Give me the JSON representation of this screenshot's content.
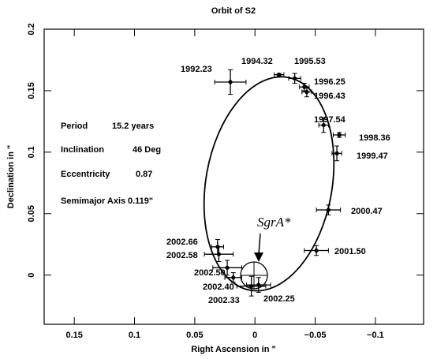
{
  "chart_data": {
    "type": "scatter",
    "title": "Orbit of S2",
    "x_label": "Right Ascension in \"",
    "y_label": "Declination in \"",
    "xlim": [
      0.175,
      -0.14
    ],
    "ylim": [
      -0.04,
      0.2
    ],
    "xticks": [
      0.15,
      0.1,
      0.05,
      0,
      {
        "value": -0.05,
        "label": "−0.05"
      },
      {
        "value": -0.1,
        "label": "−0.1"
      }
    ],
    "yticks": [
      0,
      0.05,
      0.1,
      0.15,
      0.2
    ],
    "series": [
      {
        "color": "#000000",
        "point_labels": [
          "1992.23",
          "1994.32",
          "1995.53",
          "1996.25",
          "1996.43",
          "1997.54",
          "1998.36",
          "1999.47",
          "2000.47",
          "2001.50",
          "2002.25",
          "2002.33",
          "2002.40",
          "2002.50",
          "2002.58",
          "2002.66"
        ],
        "x": [
          0.0204,
          -0.02,
          -0.033,
          -0.041,
          -0.043,
          -0.057,
          -0.07,
          -0.068,
          -0.061,
          -0.051,
          -0.003,
          0.003,
          0.018,
          0.023,
          0.03,
          0.031
        ],
        "values": [
          0.157,
          0.163,
          0.16,
          0.153,
          0.149,
          0.122,
          0.114,
          0.099,
          0.053,
          0.02,
          -0.008,
          -0.009,
          -0.002,
          0.006,
          0.017,
          0.023
        ],
        "xerr": [
          0.013,
          0.004,
          0.005,
          0.004,
          0.004,
          0.004,
          0.005,
          0.004,
          0.01,
          0.01,
          0.01,
          0.012,
          0.007,
          0.012,
          0.012,
          0.005
        ],
        "yerr": [
          0.01,
          0.001,
          0.004,
          0.003,
          0.004,
          0.006,
          0.002,
          0.006,
          0.004,
          0.004,
          0.006,
          0.008,
          0.004,
          0.006,
          0.006,
          0.006
        ]
      }
    ],
    "annotations": [
      {
        "label": "Period",
        "value": "15.2 years"
      },
      {
        "label": "Inclination",
        "value": "46 Deg"
      },
      {
        "label": "Eccentricity",
        "value": "0.87"
      },
      {
        "label": "Semimajor Axis",
        "value": "0.119\""
      }
    ],
    "marker_label": "SgrA*"
  }
}
